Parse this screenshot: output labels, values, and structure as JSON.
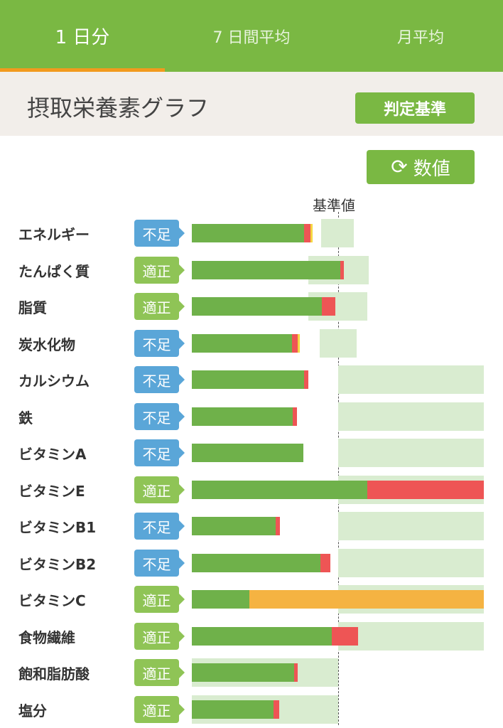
{
  "tabs": [
    "1 日分",
    "7 日間平均",
    "月平均"
  ],
  "header": {
    "title": "摂取栄養素グラフ",
    "criteria_button": "判定基準"
  },
  "toggle": {
    "label": "数値",
    "icon": "refresh-icon"
  },
  "reference_label": "基準値",
  "colors": {
    "theme_green": "#7ab843",
    "indicator_orange": "#f29a1e",
    "badge_insufficient": "#5aa6d8",
    "badge_adequate": "#8fc456"
  },
  "nutrients": [
    {
      "name": "エネルギー",
      "status": "不足",
      "kind": "insufficient"
    },
    {
      "name": "たんぱく質",
      "status": "適正",
      "kind": "adequate"
    },
    {
      "name": "脂質",
      "status": "適正",
      "kind": "adequate"
    },
    {
      "name": "炭水化物",
      "status": "不足",
      "kind": "insufficient"
    },
    {
      "name": "カルシウム",
      "status": "不足",
      "kind": "insufficient"
    },
    {
      "name": "鉄",
      "status": "不足",
      "kind": "insufficient"
    },
    {
      "name": "ビタミンA",
      "status": "不足",
      "kind": "insufficient"
    },
    {
      "name": "ビタミンE",
      "status": "適正",
      "kind": "adequate"
    },
    {
      "name": "ビタミンB1",
      "status": "不足",
      "kind": "insufficient"
    },
    {
      "name": "ビタミンB2",
      "status": "不足",
      "kind": "insufficient"
    },
    {
      "name": "ビタミンC",
      "status": "適正",
      "kind": "adequate"
    },
    {
      "name": "食物繊維",
      "status": "適正",
      "kind": "adequate"
    },
    {
      "name": "飽和脂肪酸",
      "status": "適正",
      "kind": "adequate"
    },
    {
      "name": "塩分",
      "status": "適正",
      "kind": "adequate"
    }
  ]
}
